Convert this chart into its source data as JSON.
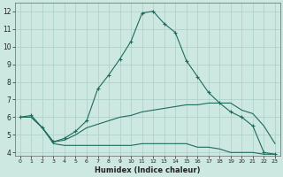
{
  "xlabel": "Humidex (Indice chaleur)",
  "xlim": [
    -0.5,
    23.5
  ],
  "ylim": [
    3.8,
    12.5
  ],
  "yticks": [
    4,
    5,
    6,
    7,
    8,
    9,
    10,
    11,
    12
  ],
  "xticks": [
    0,
    1,
    2,
    3,
    4,
    5,
    6,
    7,
    8,
    9,
    10,
    11,
    12,
    13,
    14,
    15,
    16,
    17,
    18,
    19,
    20,
    21,
    22,
    23
  ],
  "bg_color": "#cce8e0",
  "grid_color": "#aacfc8",
  "line_color": "#1e6b5e",
  "series": [
    {
      "x": [
        0,
        1,
        2,
        3,
        4,
        5,
        6,
        7,
        8,
        9,
        10,
        11,
        12,
        13,
        14,
        15,
        16,
        17,
        18,
        19,
        20,
        21,
        22,
        23
      ],
      "y": [
        6.0,
        6.1,
        5.4,
        4.6,
        4.8,
        5.2,
        5.8,
        7.6,
        8.4,
        9.3,
        10.3,
        11.9,
        12.0,
        11.3,
        10.8,
        9.2,
        8.3,
        7.4,
        6.8,
        6.3,
        6.0,
        5.5,
        4.0,
        3.9
      ],
      "marker": "+"
    },
    {
      "x": [
        0,
        1,
        2,
        3,
        4,
        5,
        6,
        7,
        8,
        9,
        10,
        11,
        12,
        13,
        14,
        15,
        16,
        17,
        18,
        19,
        20,
        21,
        22,
        23
      ],
      "y": [
        6.0,
        6.0,
        5.4,
        4.5,
        4.4,
        4.4,
        4.4,
        4.4,
        4.4,
        4.4,
        4.4,
        4.5,
        4.5,
        4.5,
        4.5,
        4.5,
        4.3,
        4.3,
        4.2,
        4.0,
        4.0,
        4.0,
        3.9,
        3.9
      ],
      "marker": null
    },
    {
      "x": [
        0,
        1,
        2,
        3,
        4,
        5,
        6,
        7,
        8,
        9,
        10,
        11,
        12,
        13,
        14,
        15,
        16,
        17,
        18,
        19,
        20,
        21,
        22,
        23
      ],
      "y": [
        6.0,
        6.0,
        5.4,
        4.6,
        4.7,
        5.0,
        5.4,
        5.6,
        5.8,
        6.0,
        6.1,
        6.3,
        6.4,
        6.5,
        6.6,
        6.7,
        6.7,
        6.8,
        6.8,
        6.8,
        6.4,
        6.2,
        5.5,
        4.5
      ],
      "marker": null
    }
  ]
}
